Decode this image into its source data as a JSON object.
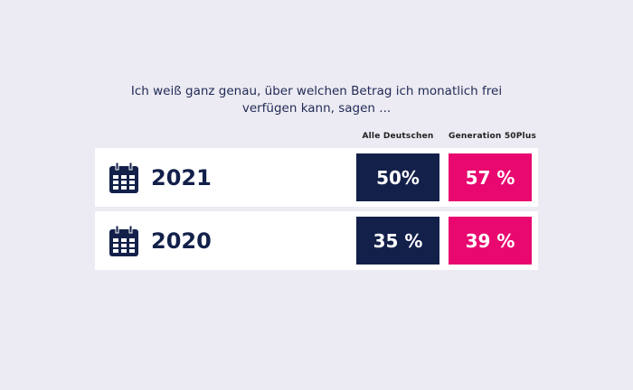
{
  "chart_data": {
    "type": "table",
    "title": "Ich weiß ganz genau, über welchen Betrag ich monatlich frei verfügen kann, sagen ...",
    "columns": [
      "Alle Deutschen",
      "Generation 50Plus"
    ],
    "rows": [
      {
        "year": "2021",
        "values": [
          "50%",
          "57 %"
        ]
      },
      {
        "year": "2020",
        "values": [
          "35 %",
          "39 %"
        ]
      }
    ],
    "colors": {
      "Alle Deutschen": "#13204a",
      "Generation 50Plus": "#e8086f"
    },
    "row_icon": "calendar-icon"
  }
}
